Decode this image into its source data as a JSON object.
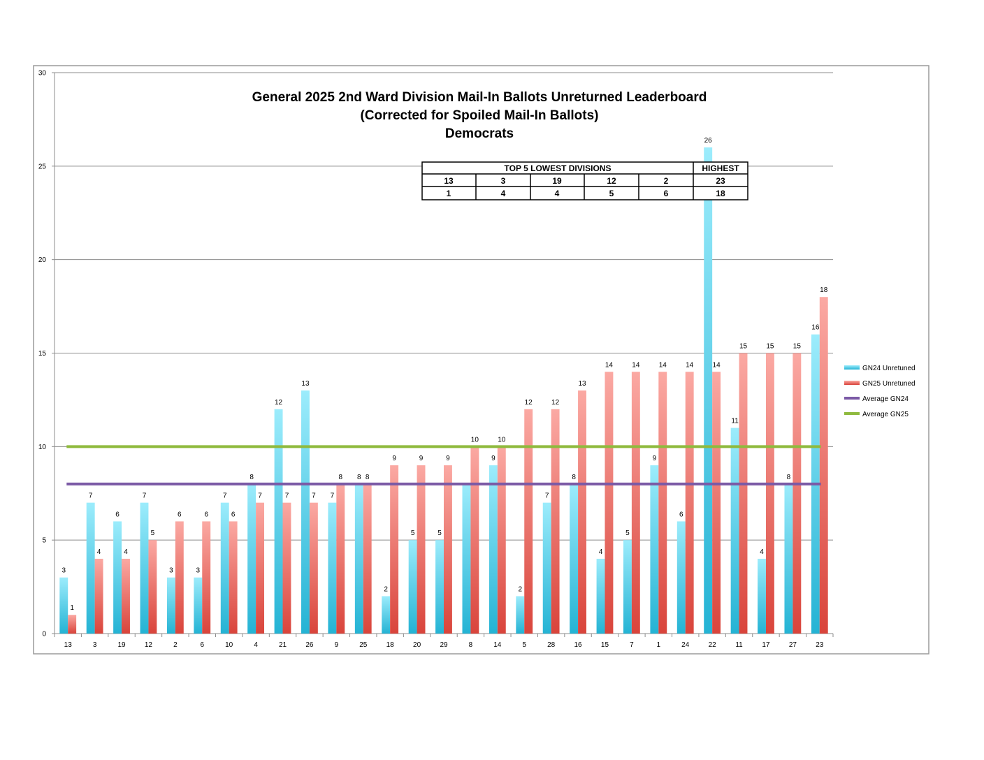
{
  "chart_data": {
    "type": "bar",
    "title": [
      "General 2025 2nd Ward Division Mail-In Ballots Unreturned Leaderboard",
      "(Corrected for Spoiled Mail-In Ballots)",
      "Democrats"
    ],
    "categories": [
      "13",
      "3",
      "19",
      "12",
      "2",
      "6",
      "10",
      "4",
      "21",
      "26",
      "9",
      "25",
      "18",
      "20",
      "29",
      "8",
      "14",
      "5",
      "28",
      "16",
      "15",
      "7",
      "1",
      "24",
      "22",
      "11",
      "17",
      "27",
      "23"
    ],
    "series": [
      {
        "name": "GN24 Unretuned",
        "color": "#3fc8e4",
        "values": [
          3,
          7,
          6,
          7,
          3,
          3,
          7,
          8,
          12,
          13,
          7,
          8,
          2,
          5,
          5,
          8,
          9,
          2,
          7,
          8,
          4,
          5,
          9,
          6,
          26,
          11,
          4,
          8,
          16
        ],
        "labels": [
          "3",
          "7",
          "6",
          "7",
          "3",
          "3",
          "7",
          "8",
          "12",
          "13",
          "7",
          "8",
          "2",
          "5",
          "5",
          "",
          "9",
          "2",
          "7",
          "8",
          "4",
          "5",
          "9",
          "6",
          "26",
          "11",
          "4",
          "8",
          "16"
        ]
      },
      {
        "name": "GN25 Unretuned",
        "color": "#ec6a61",
        "values": [
          1,
          4,
          4,
          5,
          6,
          6,
          6,
          7,
          7,
          7,
          8,
          8,
          9,
          9,
          9,
          10,
          10,
          12,
          12,
          13,
          14,
          14,
          14,
          14,
          14,
          15,
          15,
          15,
          18
        ],
        "labels": [
          "1",
          "4",
          "4",
          "5",
          "6",
          "6",
          "6",
          "7",
          "7",
          "7",
          "8",
          "8",
          "9",
          "9",
          "9",
          "10",
          "10",
          "12",
          "12",
          "13",
          "14",
          "14",
          "14",
          "14",
          "14",
          "15",
          "15",
          "15",
          "18"
        ]
      }
    ],
    "averages": [
      {
        "name": "Average GN24",
        "value": 8,
        "color": "#7b5aa6"
      },
      {
        "name": "Average GN25",
        "value": 10,
        "color": "#8fba3e"
      }
    ],
    "ylim": [
      0,
      30
    ],
    "yticks": [
      "0",
      "5",
      "10",
      "15",
      "20",
      "25",
      "30"
    ],
    "xlabel": "",
    "ylabel": "",
    "grid": true,
    "legend": "right",
    "table": {
      "header_lowest": "TOP 5 LOWEST DIVISIONS",
      "header_highest": "HIGHEST",
      "row1": [
        "13",
        "3",
        "19",
        "12",
        "2",
        "23"
      ],
      "row2": [
        "1",
        "4",
        "4",
        "5",
        "6",
        "18"
      ]
    }
  }
}
